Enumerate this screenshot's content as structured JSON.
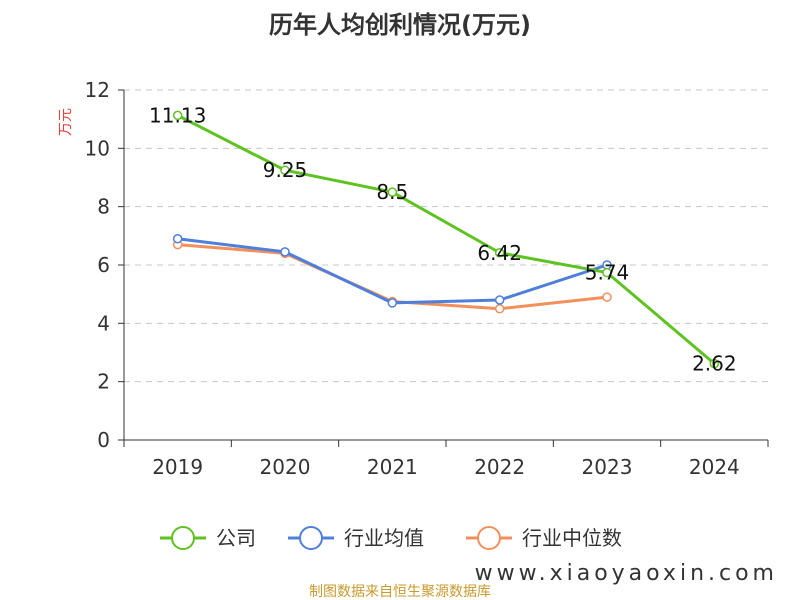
{
  "chart_data": {
    "type": "line",
    "title": "历年人均创利情况(万元)",
    "ylabel": "万元",
    "categories": [
      "2019",
      "2020",
      "2021",
      "2022",
      "2023",
      "2024"
    ],
    "ylim": [
      0,
      12
    ],
    "yticks": [
      "0",
      "2",
      "4",
      "6",
      "8",
      "10",
      "12"
    ],
    "grid": true,
    "legend_position": "bottom",
    "series": [
      {
        "name": "公司",
        "color": "#5ec221",
        "values": [
          11.13,
          9.25,
          8.5,
          6.42,
          5.74,
          2.62
        ],
        "labels": [
          "11.13",
          "9.25",
          "8.5",
          "6.42",
          "5.74",
          "2.62"
        ]
      },
      {
        "name": "行业均值",
        "color": "#4e7fdb",
        "values": [
          6.9,
          6.45,
          4.7,
          4.8,
          6.0,
          null
        ]
      },
      {
        "name": "行业中位数",
        "color": "#f2905c",
        "values": [
          6.7,
          6.4,
          4.75,
          4.5,
          4.9,
          null
        ]
      }
    ]
  },
  "footer": {
    "source": "制图数据来自恒生聚源数据库",
    "watermark": "www.xiaoyaoxin.com"
  }
}
